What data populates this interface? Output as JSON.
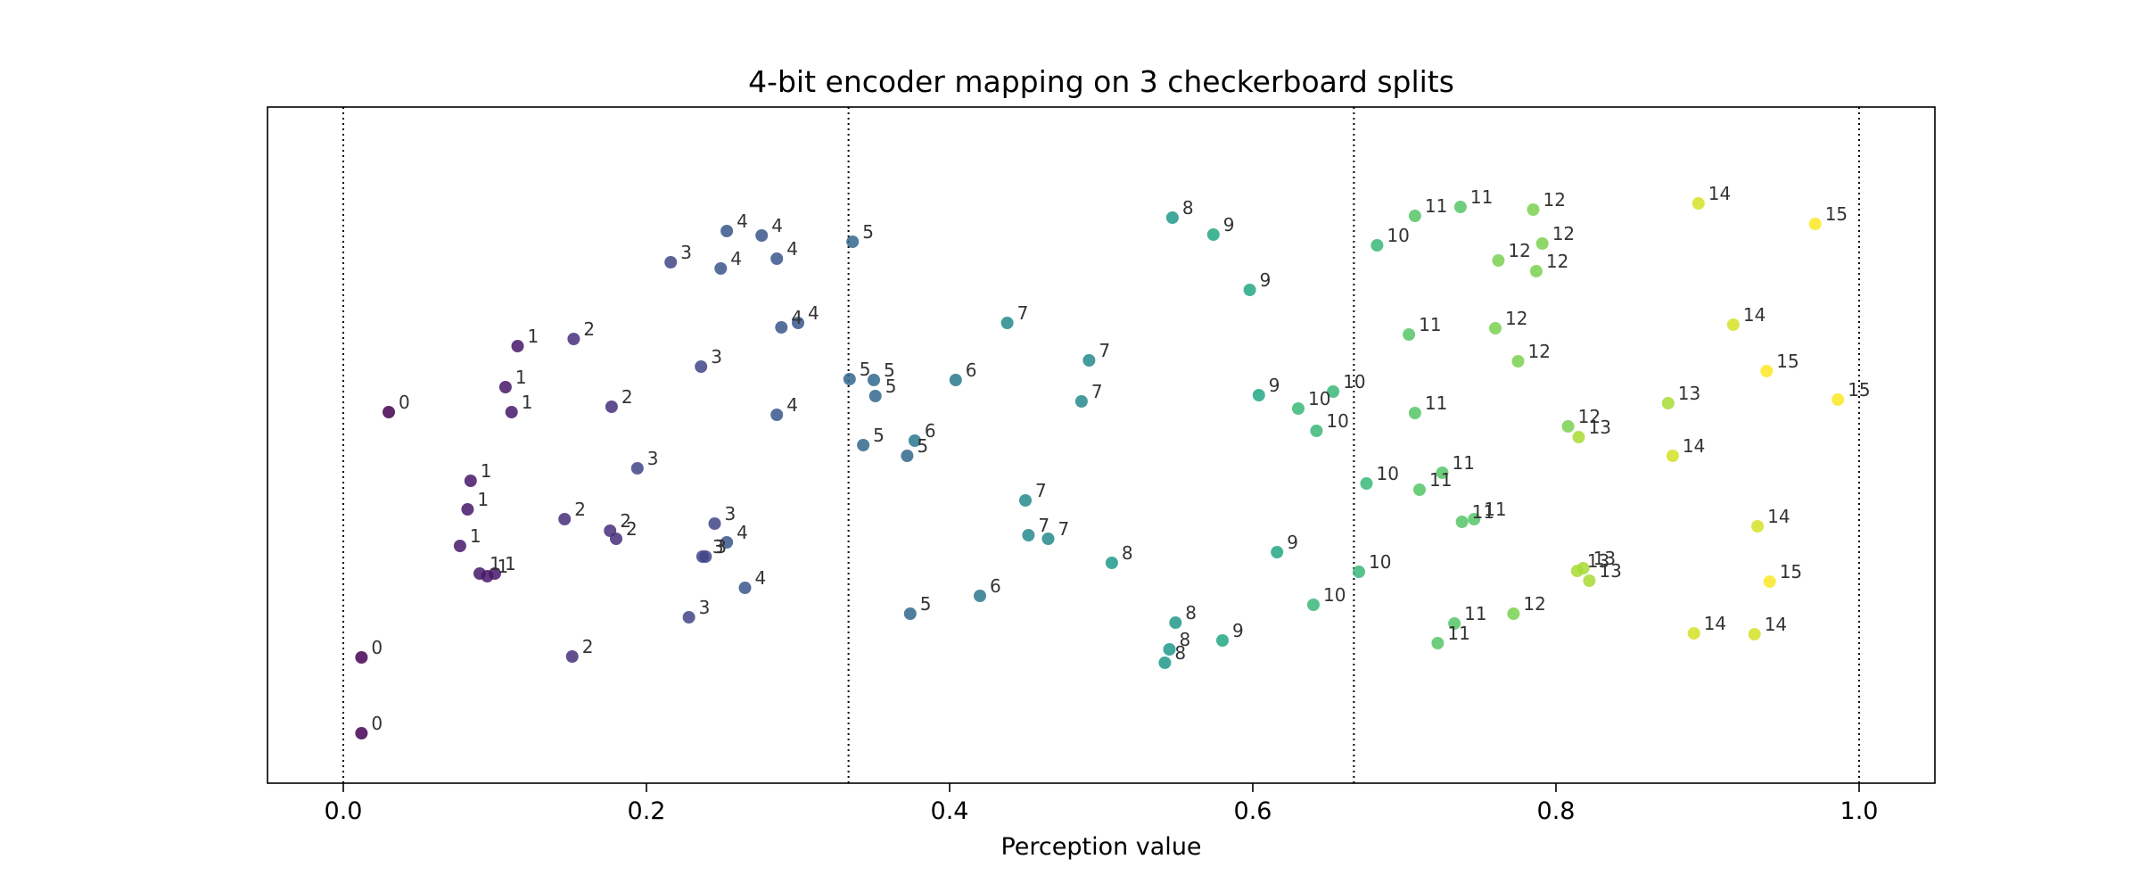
{
  "chart_data": {
    "type": "scatter",
    "title": "4-bit encoder mapping on 3 checkerboard splits",
    "xlabel": "Perception value",
    "ylabel": "",
    "xlim": [
      -0.05,
      1.05
    ],
    "xticks": [
      "0.0",
      "0.2",
      "0.4",
      "0.6",
      "0.8",
      "1.0"
    ],
    "xtick_values": [
      0.0,
      0.2,
      0.4,
      0.6,
      0.8,
      1.0
    ],
    "split_lines": [
      0.0,
      0.3333,
      0.6667,
      1.0
    ],
    "colormap": "viridis",
    "code_range": [
      0,
      15
    ],
    "grid": false,
    "points": [
      {
        "x": 0.03,
        "code": 0
      },
      {
        "x": 0.012,
        "code": 0
      },
      {
        "x": 0.012,
        "code": 0
      },
      {
        "x": 0.115,
        "code": 1
      },
      {
        "x": 0.107,
        "code": 1
      },
      {
        "x": 0.111,
        "code": 1
      },
      {
        "x": 0.084,
        "code": 1
      },
      {
        "x": 0.082,
        "code": 1
      },
      {
        "x": 0.077,
        "code": 1
      },
      {
        "x": 0.09,
        "code": 1
      },
      {
        "x": 0.095,
        "code": 1
      },
      {
        "x": 0.1,
        "code": 1
      },
      {
        "x": 0.152,
        "code": 2
      },
      {
        "x": 0.177,
        "code": 2
      },
      {
        "x": 0.146,
        "code": 2
      },
      {
        "x": 0.176,
        "code": 2
      },
      {
        "x": 0.18,
        "code": 2
      },
      {
        "x": 0.151,
        "code": 2
      },
      {
        "x": 0.216,
        "code": 3
      },
      {
        "x": 0.236,
        "code": 3
      },
      {
        "x": 0.194,
        "code": 3
      },
      {
        "x": 0.245,
        "code": 3
      },
      {
        "x": 0.237,
        "code": 3
      },
      {
        "x": 0.239,
        "code": 3
      },
      {
        "x": 0.228,
        "code": 3
      },
      {
        "x": 0.253,
        "code": 4
      },
      {
        "x": 0.276,
        "code": 4
      },
      {
        "x": 0.249,
        "code": 4
      },
      {
        "x": 0.286,
        "code": 4
      },
      {
        "x": 0.289,
        "code": 4
      },
      {
        "x": 0.3,
        "code": 4
      },
      {
        "x": 0.286,
        "code": 4
      },
      {
        "x": 0.253,
        "code": 4
      },
      {
        "x": 0.265,
        "code": 4
      },
      {
        "x": 0.336,
        "code": 5
      },
      {
        "x": 0.334,
        "code": 5
      },
      {
        "x": 0.35,
        "code": 5
      },
      {
        "x": 0.351,
        "code": 5
      },
      {
        "x": 0.343,
        "code": 5
      },
      {
        "x": 0.372,
        "code": 5
      },
      {
        "x": 0.374,
        "code": 5
      },
      {
        "x": 0.404,
        "code": 6
      },
      {
        "x": 0.377,
        "code": 6
      },
      {
        "x": 0.42,
        "code": 6
      },
      {
        "x": 0.438,
        "code": 7
      },
      {
        "x": 0.492,
        "code": 7
      },
      {
        "x": 0.487,
        "code": 7
      },
      {
        "x": 0.45,
        "code": 7
      },
      {
        "x": 0.452,
        "code": 7
      },
      {
        "x": 0.465,
        "code": 7
      },
      {
        "x": 0.547,
        "code": 8
      },
      {
        "x": 0.507,
        "code": 8
      },
      {
        "x": 0.549,
        "code": 8
      },
      {
        "x": 0.545,
        "code": 8
      },
      {
        "x": 0.542,
        "code": 8
      },
      {
        "x": 0.574,
        "code": 9
      },
      {
        "x": 0.598,
        "code": 9
      },
      {
        "x": 0.604,
        "code": 9
      },
      {
        "x": 0.616,
        "code": 9
      },
      {
        "x": 0.58,
        "code": 9
      },
      {
        "x": 0.682,
        "code": 10
      },
      {
        "x": 0.653,
        "code": 10
      },
      {
        "x": 0.63,
        "code": 10
      },
      {
        "x": 0.642,
        "code": 10
      },
      {
        "x": 0.675,
        "code": 10
      },
      {
        "x": 0.67,
        "code": 10
      },
      {
        "x": 0.64,
        "code": 10
      },
      {
        "x": 0.707,
        "code": 11
      },
      {
        "x": 0.737,
        "code": 11
      },
      {
        "x": 0.703,
        "code": 11
      },
      {
        "x": 0.707,
        "code": 11
      },
      {
        "x": 0.725,
        "code": 11
      },
      {
        "x": 0.71,
        "code": 11
      },
      {
        "x": 0.738,
        "code": 11
      },
      {
        "x": 0.746,
        "code": 11
      },
      {
        "x": 0.733,
        "code": 11
      },
      {
        "x": 0.722,
        "code": 11
      },
      {
        "x": 0.785,
        "code": 12
      },
      {
        "x": 0.791,
        "code": 12
      },
      {
        "x": 0.762,
        "code": 12
      },
      {
        "x": 0.787,
        "code": 12
      },
      {
        "x": 0.76,
        "code": 12
      },
      {
        "x": 0.775,
        "code": 12
      },
      {
        "x": 0.808,
        "code": 12
      },
      {
        "x": 0.772,
        "code": 12
      },
      {
        "x": 0.874,
        "code": 13
      },
      {
        "x": 0.815,
        "code": 13
      },
      {
        "x": 0.814,
        "code": 13
      },
      {
        "x": 0.818,
        "code": 13
      },
      {
        "x": 0.822,
        "code": 13
      },
      {
        "x": 0.894,
        "code": 14
      },
      {
        "x": 0.917,
        "code": 14
      },
      {
        "x": 0.877,
        "code": 14
      },
      {
        "x": 0.933,
        "code": 14
      },
      {
        "x": 0.891,
        "code": 14
      },
      {
        "x": 0.931,
        "code": 14
      },
      {
        "x": 0.971,
        "code": 15
      },
      {
        "x": 0.939,
        "code": 15
      },
      {
        "x": 0.986,
        "code": 15
      },
      {
        "x": 0.941,
        "code": 15
      }
    ]
  }
}
